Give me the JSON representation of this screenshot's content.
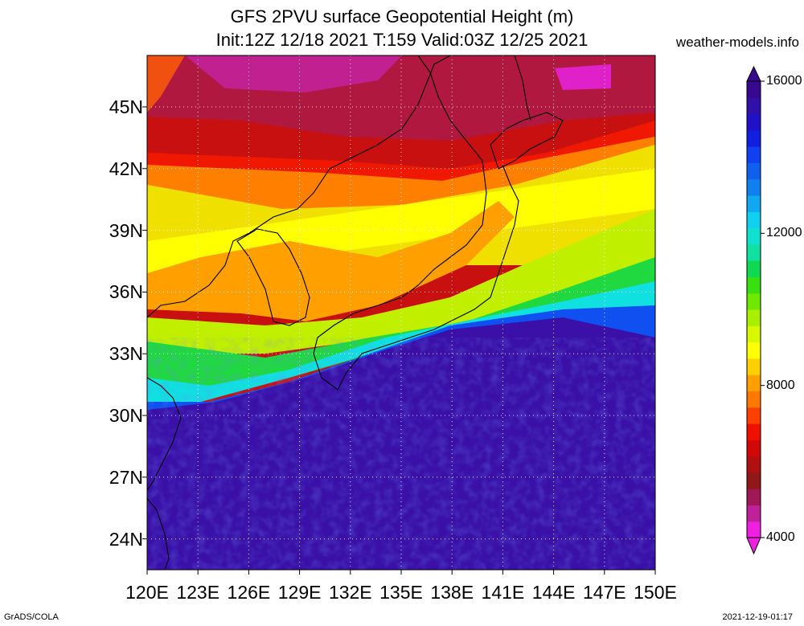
{
  "title_line1": "GFS 2PVU surface Geopotential Height (m)",
  "title_line2": "Init:12Z 12/18 2021 T:159 Valid:03Z 12/25 2021",
  "credit": "weather-models.info",
  "footer_left": "GrADS/COLA",
  "footer_right": "2021-12-19-01:17",
  "map": {
    "lon_range": [
      120,
      150
    ],
    "lat_range": [
      22.5,
      47.5
    ],
    "lat_labels": [
      "45N",
      "42N",
      "39N",
      "36N",
      "33N",
      "30N",
      "27N",
      "24N"
    ],
    "lon_labels": [
      "120E",
      "123E",
      "126E",
      "129E",
      "132E",
      "135E",
      "138E",
      "141E",
      "144E",
      "147E",
      "150E"
    ],
    "gridlines": "dotted white every 3 degrees"
  },
  "colorbar": {
    "range_m": [
      4000,
      16000
    ],
    "labels": [
      "16000",
      "12000",
      "8000",
      "4000"
    ],
    "colors": [
      "#f020e0",
      "#c0209a",
      "#a01858",
      "#901818",
      "#b01010",
      "#d00808",
      "#f01000",
      "#ff4000",
      "#ff7800",
      "#ffa000",
      "#ffd000",
      "#ffff00",
      "#d8f800",
      "#a8f000",
      "#70e800",
      "#38e010",
      "#10d850",
      "#10e0a0",
      "#10e0d0",
      "#10d0f0",
      "#10a8f0",
      "#1080f0",
      "#1060f0",
      "#1040f0",
      "#1020e0",
      "#2010c8",
      "#3010a8",
      "#380890"
    ]
  }
}
